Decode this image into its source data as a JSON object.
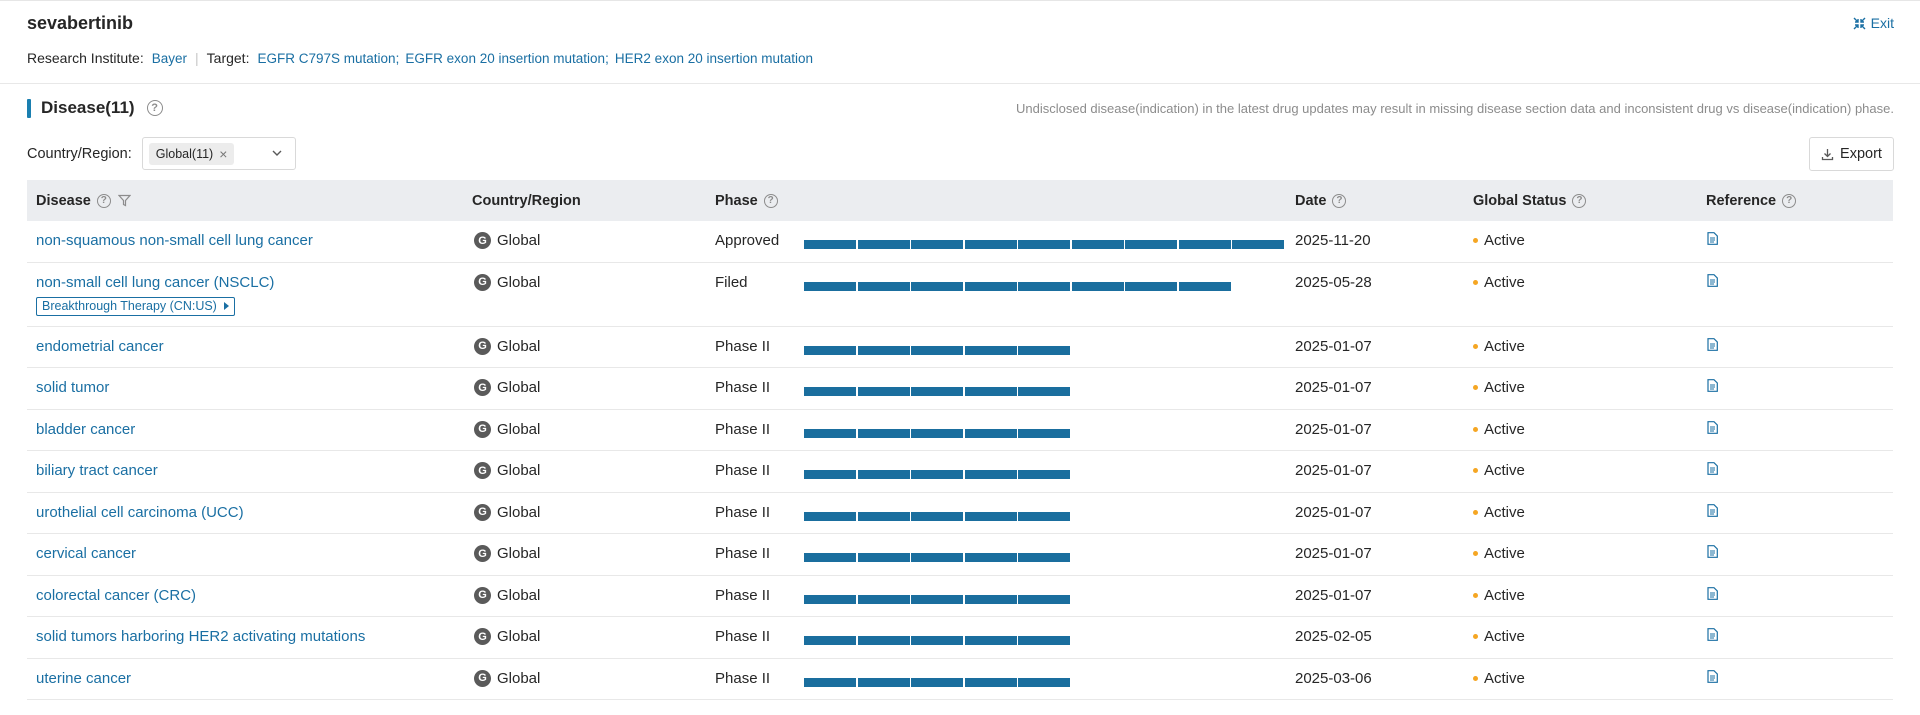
{
  "header": {
    "drug_name": "sevabertinib",
    "research_institute_label": "Research Institute:",
    "research_institute": "Bayer",
    "target_label": "Target:",
    "targets": [
      "EGFR C797S mutation",
      "EGFR exon 20 insertion mutation",
      "HER2 exon 20 insertion mutation"
    ],
    "exit_label": "Exit"
  },
  "section": {
    "title": "Disease(11)",
    "notice": "Undisclosed disease(indication) in the latest drug updates may result in missing disease section data and inconsistent drug vs disease(indication) phase."
  },
  "filter": {
    "label": "Country/Region:",
    "selected_chip": "Global(11)"
  },
  "export_label": "Export",
  "table": {
    "columns": [
      "Disease",
      "Country/Region",
      "Phase",
      "Date",
      "Global Status",
      "Reference"
    ],
    "rows": [
      {
        "disease": "non-squamous non-small cell lung cancer",
        "country": "Global",
        "phase": "Approved",
        "phase_segments": 9,
        "date": "2025-11-20",
        "status": "Active"
      },
      {
        "disease": "non-small cell lung cancer (NSCLC)",
        "country": "Global",
        "phase": "Filed",
        "phase_segments": 8,
        "date": "2025-05-28",
        "status": "Active",
        "badge": "Breakthrough Therapy (CN:US)"
      },
      {
        "disease": "endometrial cancer",
        "country": "Global",
        "phase": "Phase II",
        "phase_segments": 5,
        "date": "2025-01-07",
        "status": "Active"
      },
      {
        "disease": "solid tumor",
        "country": "Global",
        "phase": "Phase II",
        "phase_segments": 5,
        "date": "2025-01-07",
        "status": "Active"
      },
      {
        "disease": "bladder cancer",
        "country": "Global",
        "phase": "Phase II",
        "phase_segments": 5,
        "date": "2025-01-07",
        "status": "Active"
      },
      {
        "disease": "biliary tract cancer",
        "country": "Global",
        "phase": "Phase II",
        "phase_segments": 5,
        "date": "2025-01-07",
        "status": "Active"
      },
      {
        "disease": "urothelial cell carcinoma (UCC)",
        "country": "Global",
        "phase": "Phase II",
        "phase_segments": 5,
        "date": "2025-01-07",
        "status": "Active"
      },
      {
        "disease": "cervical cancer",
        "country": "Global",
        "phase": "Phase II",
        "phase_segments": 5,
        "date": "2025-01-07",
        "status": "Active"
      },
      {
        "disease": "colorectal cancer (CRC)",
        "country": "Global",
        "phase": "Phase II",
        "phase_segments": 5,
        "date": "2025-01-07",
        "status": "Active"
      },
      {
        "disease": "solid tumors harboring HER2 activating mutations",
        "country": "Global",
        "phase": "Phase II",
        "phase_segments": 5,
        "date": "2025-02-05",
        "status": "Active"
      },
      {
        "disease": "uterine cancer",
        "country": "Global",
        "phase": "Phase II",
        "phase_segments": 5,
        "date": "2025-03-06",
        "status": "Active"
      }
    ]
  },
  "colors": {
    "link": "#1a6fa3",
    "accent": "#1a7fb0",
    "phase_bar": "#1a6e9e",
    "status_dot": "#f5a623",
    "header_bg": "#ebedf0"
  },
  "icons": {
    "exit": "collapse-arrows-icon",
    "help": "question-circle-icon",
    "filter": "funnel-icon",
    "export": "download-icon",
    "country": "globe-g-icon",
    "reference": "document-icon"
  }
}
